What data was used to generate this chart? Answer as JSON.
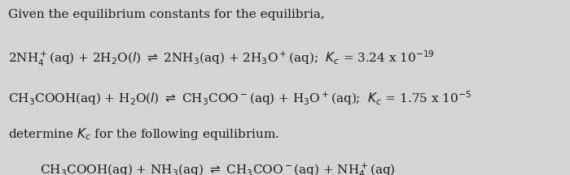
{
  "background_color": "#d4d4d4",
  "text_color": "#1a1a1a",
  "title_text": "Given the equilibrium constants for the equilibria,",
  "line1": "2NH$_4^+$(aq) + 2H$_2$O($l$) $\\rightleftharpoons$ 2NH$_3$(aq) + 2H$_3$O$^+$(aq);  $K_c$ = 3.24 x 10$^{-19}$",
  "line2": "CH$_3$COOH(aq) + H$_2$O($l$) $\\rightleftharpoons$ CH$_3$COO$^-$(aq) + H$_3$O$^+$(aq);  $K_c$ = 1.75 x 10$^{-5}$",
  "line3": "determine $K_c$ for the following equilibrium.",
  "line4": "CH$_3$COOH(aq) + NH$_3$(aq) $\\rightleftharpoons$ CH$_3$COO$^-$(aq) + NH$_4^+$(aq)",
  "title_fontsize": 11,
  "body_fontsize": 11,
  "fig_width": 7.0,
  "fig_height": 2.16,
  "dpi": 100
}
